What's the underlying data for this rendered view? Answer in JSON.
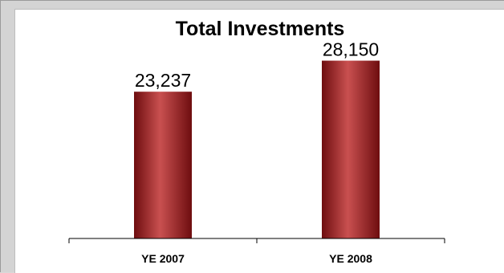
{
  "chart_data": {
    "type": "bar",
    "title": "Total Investments",
    "categories": [
      "YE 2007",
      "YE 2008"
    ],
    "values": [
      23237,
      28150
    ],
    "value_labels": [
      "23,237",
      "28,150"
    ],
    "xlabel": "",
    "ylabel": "",
    "ylim": [
      0,
      30000
    ],
    "grid": false,
    "legend": "none",
    "bar_color": "#a51f22",
    "bar_highlight": "#c95050",
    "bar_shadow": "#6e0d0f"
  }
}
